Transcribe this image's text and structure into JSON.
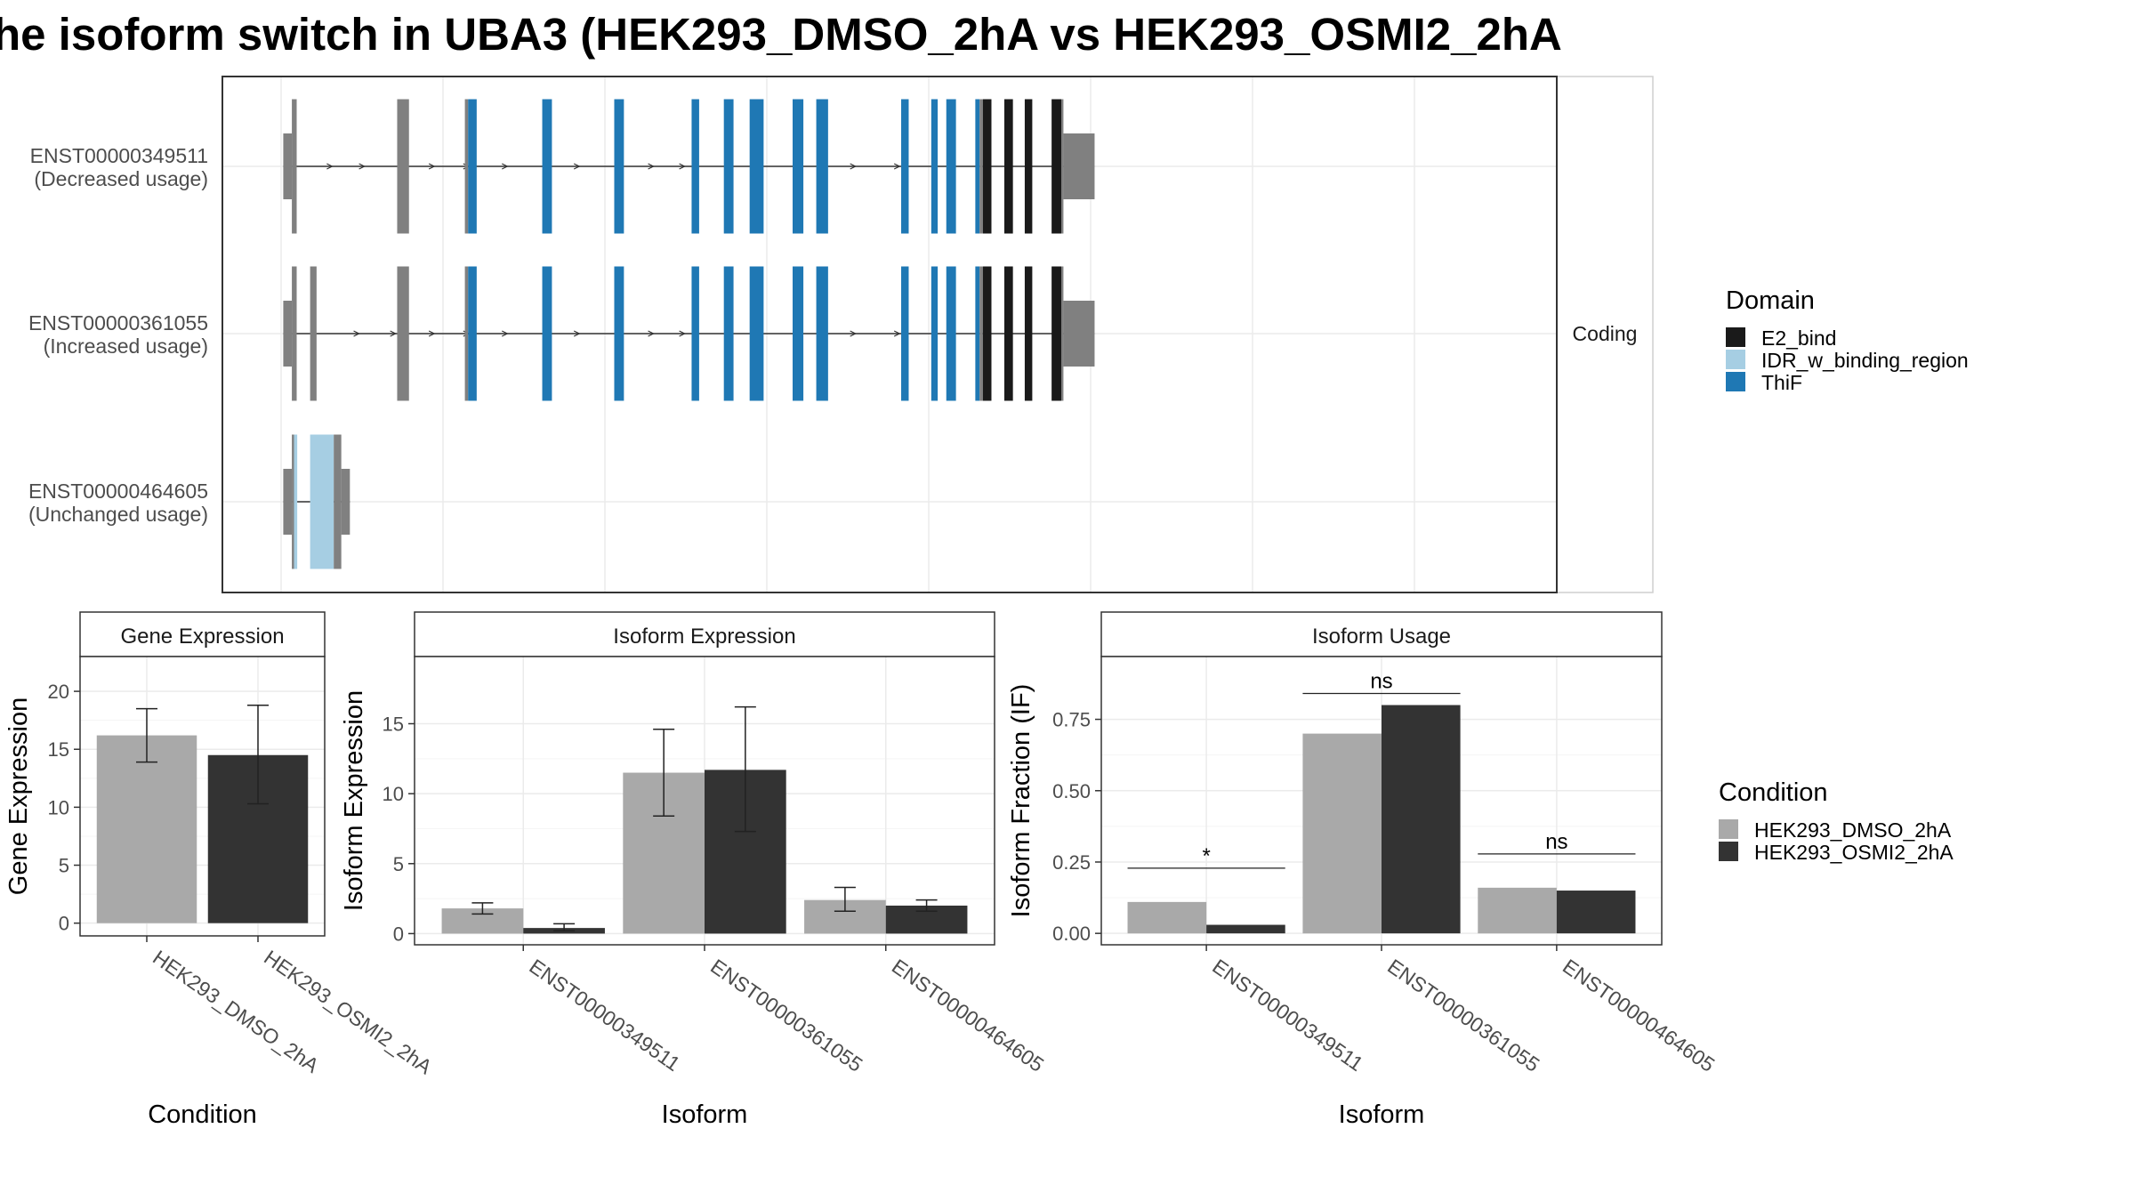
{
  "title": "he isoform switch in UBA3 (HEK293_DMSO_2hA vs HEK293_OSMI2_2hA",
  "chart_data": [
    {
      "type": "gene_structure",
      "facet_label": "Coding",
      "transcripts": [
        {
          "id": "ENST00000349511",
          "usage": "(Decreased usage)",
          "exons": [
            {
              "from": 0.2,
              "to": 1.0,
              "kind": "utr"
            },
            {
              "from": 1.0,
              "to": 1.45,
              "kind": "cds"
            },
            {
              "from": 10.8,
              "to": 11.9,
              "kind": "cds"
            },
            {
              "from": 17.1,
              "to": 17.4,
              "kind": "cds"
            },
            {
              "from": 17.4,
              "to": 18.2,
              "kind": "ThiF"
            },
            {
              "from": 24.3,
              "to": 25.2,
              "kind": "ThiF"
            },
            {
              "from": 31.0,
              "to": 31.9,
              "kind": "ThiF"
            },
            {
              "from": 38.2,
              "to": 38.9,
              "kind": "ThiF"
            },
            {
              "from": 41.2,
              "to": 42.1,
              "kind": "ThiF"
            },
            {
              "from": 43.6,
              "to": 44.9,
              "kind": "ThiF"
            },
            {
              "from": 47.6,
              "to": 48.6,
              "kind": "ThiF"
            },
            {
              "from": 49.8,
              "to": 50.9,
              "kind": "ThiF"
            },
            {
              "from": 57.7,
              "to": 58.4,
              "kind": "ThiF"
            },
            {
              "from": 60.5,
              "to": 61.1,
              "kind": "ThiF"
            },
            {
              "from": 61.9,
              "to": 62.8,
              "kind": "ThiF"
            },
            {
              "from": 64.6,
              "to": 65.0,
              "kind": "ThiF"
            },
            {
              "from": 65.0,
              "to": 65.3,
              "kind": "cds"
            },
            {
              "from": 65.3,
              "to": 66.1,
              "kind": "E2_bind"
            },
            {
              "from": 67.3,
              "to": 68.1,
              "kind": "E2_bind"
            },
            {
              "from": 69.2,
              "to": 69.9,
              "kind": "E2_bind"
            },
            {
              "from": 71.7,
              "to": 72.6,
              "kind": "E2_bind"
            },
            {
              "from": 72.6,
              "to": 72.8,
              "kind": "cds"
            },
            {
              "from": 72.8,
              "to": 75.7,
              "kind": "utr"
            }
          ],
          "arrows": [
            4.5,
            7.5,
            14.0,
            17.2,
            20.8,
            27.5,
            34.4,
            37.3,
            53.2,
            57.3
          ]
        },
        {
          "id": "ENST00000361055",
          "usage": "(Increased usage)",
          "exons": [
            {
              "from": 0.2,
              "to": 1.0,
              "kind": "utr"
            },
            {
              "from": 1.0,
              "to": 1.45,
              "kind": "cds"
            },
            {
              "from": 2.7,
              "to": 3.3,
              "kind": "cds"
            },
            {
              "from": 10.8,
              "to": 11.9,
              "kind": "cds"
            },
            {
              "from": 17.1,
              "to": 17.4,
              "kind": "cds"
            },
            {
              "from": 17.4,
              "to": 18.2,
              "kind": "ThiF"
            },
            {
              "from": 24.3,
              "to": 25.2,
              "kind": "ThiF"
            },
            {
              "from": 31.0,
              "to": 31.9,
              "kind": "ThiF"
            },
            {
              "from": 38.2,
              "to": 38.9,
              "kind": "ThiF"
            },
            {
              "from": 41.2,
              "to": 42.1,
              "kind": "ThiF"
            },
            {
              "from": 43.6,
              "to": 44.9,
              "kind": "ThiF"
            },
            {
              "from": 47.6,
              "to": 48.6,
              "kind": "ThiF"
            },
            {
              "from": 49.8,
              "to": 50.9,
              "kind": "ThiF"
            },
            {
              "from": 57.7,
              "to": 58.4,
              "kind": "ThiF"
            },
            {
              "from": 60.5,
              "to": 61.1,
              "kind": "ThiF"
            },
            {
              "from": 61.9,
              "to": 62.8,
              "kind": "ThiF"
            },
            {
              "from": 64.6,
              "to": 65.0,
              "kind": "ThiF"
            },
            {
              "from": 65.0,
              "to": 65.3,
              "kind": "cds"
            },
            {
              "from": 65.3,
              "to": 66.1,
              "kind": "E2_bind"
            },
            {
              "from": 67.3,
              "to": 68.1,
              "kind": "E2_bind"
            },
            {
              "from": 69.2,
              "to": 69.9,
              "kind": "E2_bind"
            },
            {
              "from": 71.7,
              "to": 72.6,
              "kind": "E2_bind"
            },
            {
              "from": 72.6,
              "to": 72.8,
              "kind": "cds"
            },
            {
              "from": 72.8,
              "to": 75.7,
              "kind": "utr"
            }
          ],
          "arrows": [
            7.0,
            10.4,
            14.0,
            17.2,
            20.8,
            27.5,
            34.4,
            37.3,
            53.2,
            57.3
          ]
        },
        {
          "id": "ENST00000464605",
          "usage": "(Unchanged usage)",
          "exons": [
            {
              "from": 0.2,
              "to": 1.0,
              "kind": "utr"
            },
            {
              "from": 1.0,
              "to": 1.2,
              "kind": "cds"
            },
            {
              "from": 1.2,
              "to": 1.5,
              "kind": "IDR_w_binding_region"
            },
            {
              "from": 2.7,
              "to": 4.9,
              "kind": "IDR_w_binding_region"
            },
            {
              "from": 4.9,
              "to": 5.6,
              "kind": "cds"
            },
            {
              "from": 5.6,
              "to": 6.4,
              "kind": "utr"
            }
          ],
          "arrows": []
        }
      ],
      "legend_title": "Domain",
      "legend": [
        {
          "label": "E2_bind",
          "color": "#1a1a1a"
        },
        {
          "label": "IDR_w_binding_region",
          "color": "#a6cee3"
        },
        {
          "label": "ThiF",
          "color": "#1f78b4"
        }
      ],
      "colors": {
        "exon": "#808080",
        "E2_bind": "#1a1a1a",
        "IDR_w_binding_region": "#a6cee3",
        "ThiF": "#1f78b4"
      }
    },
    {
      "type": "bar",
      "panel_title": "Gene Expression",
      "xlabel": "Condition",
      "ylabel": "Gene Expression",
      "categories": [
        "HEK293_DMSO_2hA",
        "HEK293_OSMI2_2hA"
      ],
      "values": [
        16.2,
        14.5
      ],
      "error_low": [
        13.9,
        10.3
      ],
      "error_high": [
        18.5,
        18.8
      ],
      "yticks": [
        "0",
        "5",
        "10",
        "15",
        "20"
      ],
      "ylim": [
        -1.1,
        23.0
      ]
    },
    {
      "type": "bar",
      "panel_title": "Isoform Expression",
      "xlabel": "Isoform",
      "ylabel": "Isoform Expression",
      "categories": [
        "ENST00000349511",
        "ENST00000361055",
        "ENST00000464605"
      ],
      "series": [
        {
          "values": [
            1.8,
            11.5,
            2.4
          ],
          "error_low": [
            1.4,
            8.4,
            1.6
          ],
          "error_high": [
            2.2,
            14.6,
            3.3
          ]
        },
        {
          "values": [
            0.4,
            11.7,
            2.0
          ],
          "error_low": [
            0.2,
            7.3,
            1.6
          ],
          "error_high": [
            0.7,
            16.2,
            2.4
          ]
        }
      ],
      "yticks": [
        "0",
        "5",
        "10",
        "15"
      ],
      "ylim": [
        -0.8,
        19.8
      ]
    },
    {
      "type": "bar",
      "panel_title": "Isoform Usage",
      "xlabel": "Isoform",
      "ylabel": "Isoform Fraction (IF)",
      "categories": [
        "ENST00000349511",
        "ENST00000361055",
        "ENST00000464605"
      ],
      "series": [
        {
          "values": [
            0.11,
            0.7,
            0.16
          ]
        },
        {
          "values": [
            0.03,
            0.8,
            0.15
          ]
        }
      ],
      "significance": [
        "*",
        "ns",
        "ns"
      ],
      "yticks": [
        "0.00",
        "0.25",
        "0.50",
        "0.75"
      ],
      "ylim": [
        -0.04,
        0.97
      ]
    }
  ],
  "condition_legend": {
    "title": "Condition",
    "items": [
      {
        "label": "HEK293_DMSO_2hA",
        "color": "#a9a9a9"
      },
      {
        "label": "HEK293_OSMI2_2hA",
        "color": "#333333"
      }
    ]
  }
}
